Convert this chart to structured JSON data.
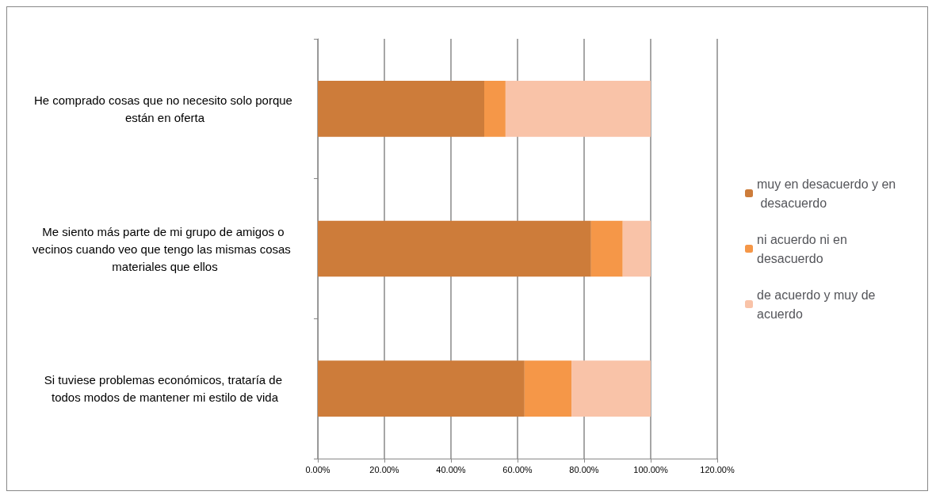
{
  "chart_data": {
    "type": "bar",
    "orientation": "horizontal",
    "stacked": true,
    "categories": [
      "He comprado cosas que no necesito solo porque están en oferta",
      "Me siento más parte de mi grupo de amigos o vecinos cuando veo que tengo las mismas cosas  materiales que ellos",
      "Si tuviese problemas económicos, trataría de todos modos de mantener mi estilo de vida"
    ],
    "series": [
      {
        "name": "muy en desacuerdo y en desacuerdo",
        "color": "#cd7c3a",
        "values": [
          50.0,
          82.1,
          62.1
        ]
      },
      {
        "name": "ni acuerdo ni en desacuerdo",
        "color": "#f59748",
        "values": [
          6.4,
          9.5,
          14.1
        ]
      },
      {
        "name": "de acuerdo y muy de acuerdo",
        "color": "#f9c3a8",
        "values": [
          43.6,
          8.4,
          23.8
        ]
      }
    ],
    "xlim": [
      0,
      120
    ],
    "xticks": [
      {
        "value": 0,
        "label": "0.00%"
      },
      {
        "value": 20,
        "label": "20.00%"
      },
      {
        "value": 40,
        "label": "40.00%"
      },
      {
        "value": 60,
        "label": "60.00%"
      },
      {
        "value": 80,
        "label": "80.00%"
      },
      {
        "value": 100,
        "label": "100.00%"
      },
      {
        "value": 120,
        "label": "120.00%"
      }
    ],
    "grid": "x",
    "legend": "right"
  }
}
